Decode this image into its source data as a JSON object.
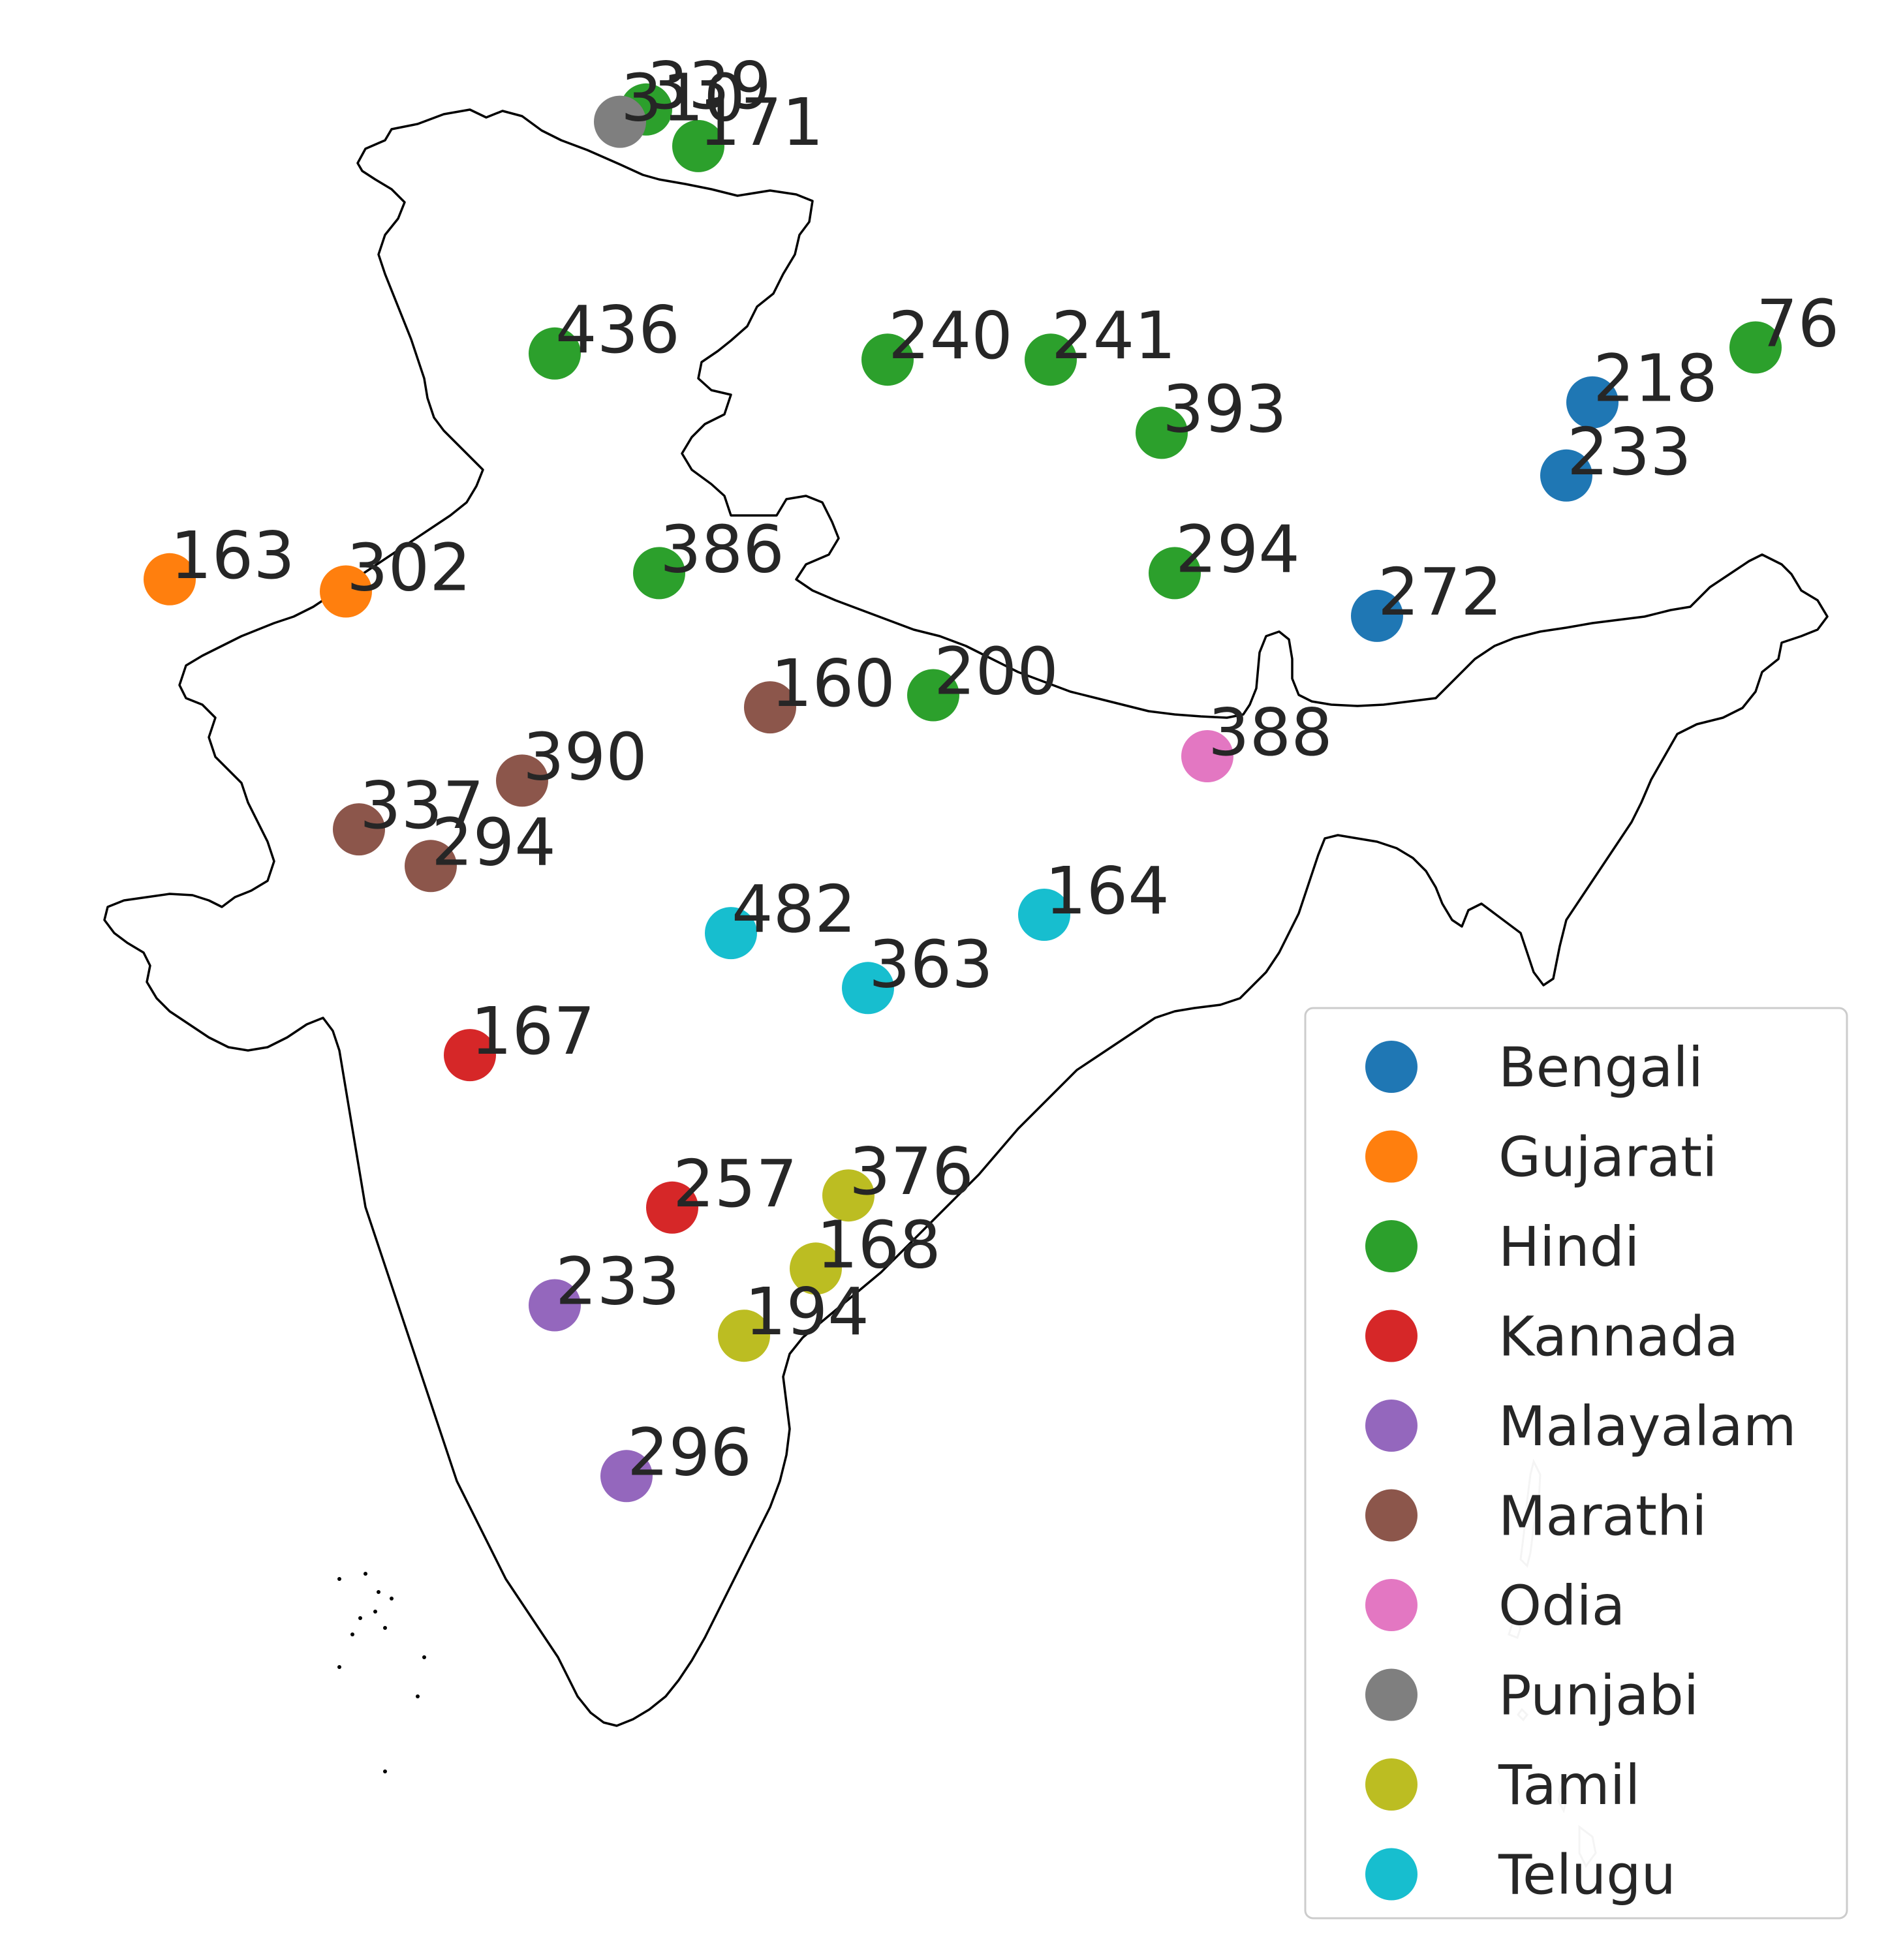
{
  "chart_data": {
    "type": "scatter-map",
    "region": "India",
    "title": "",
    "legend_position": "bottom-right",
    "categories": [
      {
        "name": "Bengali",
        "color": "#1f77b4"
      },
      {
        "name": "Gujarati",
        "color": "#ff7f0e"
      },
      {
        "name": "Hindi",
        "color": "#2ca02c"
      },
      {
        "name": "Kannada",
        "color": "#d62728"
      },
      {
        "name": "Malayalam",
        "color": "#9467bd"
      },
      {
        "name": "Marathi",
        "color": "#8c564b"
      },
      {
        "name": "Odia",
        "color": "#e377c2"
      },
      {
        "name": "Punjabi",
        "color": "#7f7f7f"
      },
      {
        "name": "Tamil",
        "color": "#bcbd22"
      },
      {
        "name": "Telugu",
        "color": "#17becf"
      }
    ],
    "points": [
      {
        "lon": 77.2,
        "lat": 30.9,
        "value": "339",
        "category": "Hindi"
      },
      {
        "lon": 76.8,
        "lat": 30.7,
        "value": "310",
        "category": "Punjabi"
      },
      {
        "lon": 78.0,
        "lat": 30.3,
        "value": "171",
        "category": "Hindi"
      },
      {
        "lon": 75.8,
        "lat": 26.9,
        "value": "436",
        "category": "Hindi"
      },
      {
        "lon": 80.9,
        "lat": 26.8,
        "value": "240",
        "category": "Hindi"
      },
      {
        "lon": 83.4,
        "lat": 26.8,
        "value": "241",
        "category": "Hindi"
      },
      {
        "lon": 85.1,
        "lat": 25.6,
        "value": "393",
        "category": "Hindi"
      },
      {
        "lon": 94.2,
        "lat": 27.0,
        "value": "76",
        "category": "Hindi"
      },
      {
        "lon": 91.7,
        "lat": 26.1,
        "value": "218",
        "category": "Bengali"
      },
      {
        "lon": 91.3,
        "lat": 24.9,
        "value": "233",
        "category": "Bengali"
      },
      {
        "lon": 88.4,
        "lat": 22.6,
        "value": "272",
        "category": "Bengali"
      },
      {
        "lon": 69.9,
        "lat": 23.2,
        "value": "163",
        "category": "Gujarati"
      },
      {
        "lon": 72.6,
        "lat": 23.0,
        "value": "302",
        "category": "Gujarati"
      },
      {
        "lon": 77.4,
        "lat": 23.3,
        "value": "386",
        "category": "Hindi"
      },
      {
        "lon": 85.3,
        "lat": 23.3,
        "value": "294",
        "category": "Hindi"
      },
      {
        "lon": 79.1,
        "lat": 21.1,
        "value": "160",
        "category": "Marathi"
      },
      {
        "lon": 81.6,
        "lat": 21.3,
        "value": "200",
        "category": "Hindi"
      },
      {
        "lon": 85.8,
        "lat": 20.3,
        "value": "388",
        "category": "Odia"
      },
      {
        "lon": 75.3,
        "lat": 19.9,
        "value": "390",
        "category": "Marathi"
      },
      {
        "lon": 72.8,
        "lat": 19.1,
        "value": "337",
        "category": "Marathi"
      },
      {
        "lon": 73.9,
        "lat": 18.5,
        "value": "294",
        "category": "Marathi"
      },
      {
        "lon": 78.5,
        "lat": 17.4,
        "value": "482",
        "category": "Telugu"
      },
      {
        "lon": 83.3,
        "lat": 17.7,
        "value": "164",
        "category": "Telugu"
      },
      {
        "lon": 80.6,
        "lat": 16.5,
        "value": "363",
        "category": "Telugu"
      },
      {
        "lon": 74.5,
        "lat": 15.4,
        "value": "167",
        "category": "Kannada"
      },
      {
        "lon": 77.6,
        "lat": 12.9,
        "value": "257",
        "category": "Kannada"
      },
      {
        "lon": 80.3,
        "lat": 13.1,
        "value": "376",
        "category": "Tamil"
      },
      {
        "lon": 79.8,
        "lat": 11.9,
        "value": "168",
        "category": "Tamil"
      },
      {
        "lon": 75.8,
        "lat": 11.3,
        "value": "233",
        "category": "Malayalam"
      },
      {
        "lon": 78.7,
        "lat": 10.8,
        "value": "194",
        "category": "Tamil"
      },
      {
        "lon": 76.9,
        "lat": 8.5,
        "value": "296",
        "category": "Malayalam"
      }
    ]
  }
}
